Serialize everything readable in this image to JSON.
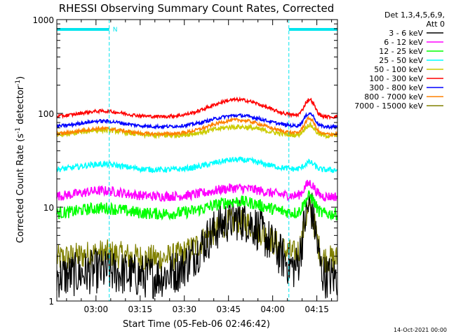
{
  "chart_data": {
    "type": "line",
    "title": "RHESSI Observing Summary Count Rates, Corrected",
    "xlabel": "Start Time (05-Feb-06 02:46:42)",
    "ylabel_main": "Corrected Count Rate (s",
    "ylabel_exp1": "-1",
    "ylabel_mid": " detector",
    "ylabel_exp2": "-1",
    "ylabel_end": ")",
    "y_scale": "log",
    "ylim": [
      1,
      1000
    ],
    "xlim": [
      "02:46:42",
      "04:22:00"
    ],
    "x_ticks": [
      "03:00",
      "03:15",
      "03:30",
      "03:45",
      "04:00",
      "04:15"
    ],
    "y_ticks": [
      "1",
      "10",
      "100",
      "1000"
    ],
    "legend_header": [
      "Det 1,3,4,5,6,9,",
      "Att 0"
    ],
    "legend_placement": "top-right",
    "footer_date": "14-Oct-2021 00:00",
    "night_marker": "N",
    "night_intervals": [
      [
        "02:46:42",
        "03:04:30"
      ],
      [
        "04:05:30",
        "04:22:00"
      ]
    ],
    "dashed_times": [
      "03:04:30",
      "04:05:30"
    ],
    "solid_times": [
      "02:46:42",
      "04:22:00"
    ],
    "series": [
      {
        "name": "3 - 6 keV",
        "color": "#000000",
        "base": 1.8,
        "peak1": 7.5,
        "peak2": 10,
        "noise": 0.55
      },
      {
        "name": "6 - 12 keV",
        "color": "#ff00ff",
        "base": 13,
        "peak1": 16,
        "peak2": 18,
        "noise": 0.12
      },
      {
        "name": "12 - 25 keV",
        "color": "#00ff00",
        "base": 8.5,
        "peak1": 11.5,
        "peak2": 13,
        "noise": 0.15
      },
      {
        "name": "25 - 50 keV",
        "color": "#00ffff",
        "base": 25,
        "peak1": 32,
        "peak2": 30,
        "noise": 0.07
      },
      {
        "name": "50 - 100 keV",
        "color": "#cccc00",
        "base": 58,
        "peak1": 72,
        "peak2": 75,
        "noise": 0.06
      },
      {
        "name": "100 - 300 keV",
        "color": "#ff0000",
        "base": 92,
        "peak1": 140,
        "peak2": 140,
        "noise": 0.04
      },
      {
        "name": "300 - 800 keV",
        "color": "#0000ff",
        "base": 72,
        "peak1": 95,
        "peak2": 100,
        "noise": 0.04
      },
      {
        "name": "800 - 7000 keV",
        "color": "#ff8000",
        "base": 60,
        "peak1": 85,
        "peak2": 88,
        "noise": 0.04
      },
      {
        "name": "7000 - 15000 keV",
        "color": "#808000",
        "base": 2.8,
        "peak1": 7,
        "peak2": 9,
        "noise": 0.35
      }
    ]
  }
}
